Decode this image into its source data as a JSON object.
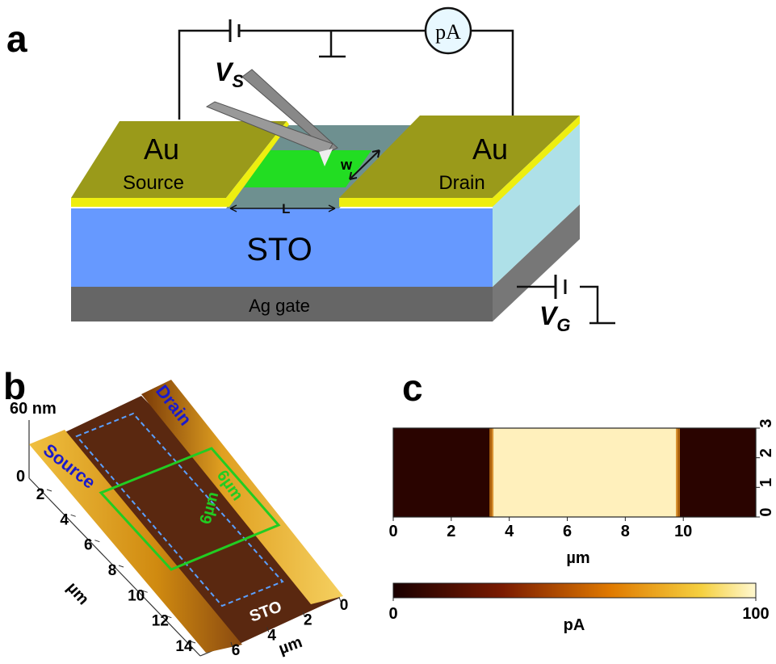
{
  "panel_a": {
    "label": "a",
    "source_voltage": "V",
    "source_voltage_sub": "S",
    "ammeter": "pA",
    "left_electrode": "Au",
    "left_role": "Source",
    "right_electrode": "Au",
    "right_role": "Drain",
    "width_label": "w",
    "length_label": "L",
    "substrate": "STO",
    "gate": "Ag gate",
    "gate_voltage": "V",
    "gate_voltage_sub": "G"
  },
  "panel_b": {
    "label": "b",
    "z_top": "60 nm",
    "z_zero": "0",
    "source": "Source",
    "drain": "Drain",
    "substrate": "STO",
    "box_width": "6µm",
    "box_length": "6µm",
    "x_ticks": [
      2,
      4,
      6,
      8,
      10,
      12,
      14
    ],
    "x_unit": "µm",
    "y_ticks": [
      0,
      2,
      4,
      6
    ],
    "y_unit": "µm"
  },
  "panel_c": {
    "label": "c",
    "xlim": [
      0,
      12.5
    ],
    "xticks": [
      0,
      2,
      4,
      6,
      8,
      10
    ],
    "xlabel": "µm",
    "ylim": [
      0,
      3
    ],
    "yticks": [
      0,
      1,
      2,
      3
    ],
    "bright_region": [
      3.4,
      9.8
    ],
    "colorbar_range": [
      0,
      100
    ],
    "colorbar_label": "pA"
  }
}
